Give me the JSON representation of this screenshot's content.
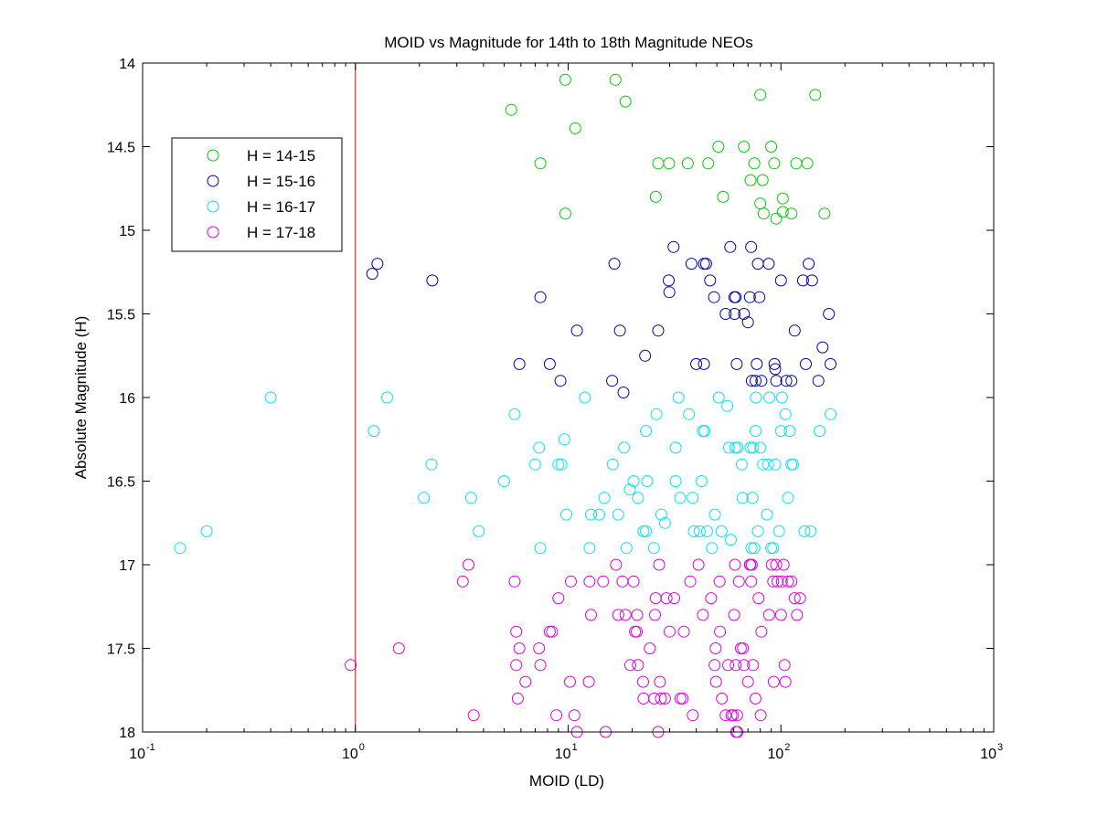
{
  "chart_data": {
    "type": "scatter",
    "title": "MOID vs Magnitude for 14th to 18th Magnitude NEOs",
    "xlabel": "MOID (LD)",
    "ylabel": "Absolute Magnitude (H)",
    "xscale": "log",
    "xlim": [
      0.1,
      1000
    ],
    "ylim": [
      14,
      18
    ],
    "y_reversed": true,
    "grid": false,
    "legend_position": "top-left",
    "x_ticks": [
      {
        "base": "10",
        "exp": "-1",
        "value": 0.1
      },
      {
        "base": "10",
        "exp": "0",
        "value": 1
      },
      {
        "base": "10",
        "exp": "1",
        "value": 10
      },
      {
        "base": "10",
        "exp": "2",
        "value": 100
      },
      {
        "base": "10",
        "exp": "3",
        "value": 1000
      }
    ],
    "y_ticks": [
      "14",
      "14.5",
      "15",
      "15.5",
      "16",
      "16.5",
      "17",
      "17.5",
      "18"
    ],
    "reference_line": {
      "x": 1,
      "color": "#ff0000"
    },
    "series": [
      {
        "name": "H = 14-15",
        "color": "#00cc00",
        "points": [
          [
            9.7,
            14.1
          ],
          [
            16.7,
            14.1
          ],
          [
            5.4,
            14.28
          ],
          [
            10.8,
            14.39
          ],
          [
            18.6,
            14.23
          ],
          [
            80,
            14.19
          ],
          [
            145,
            14.19
          ],
          [
            7.4,
            14.6
          ],
          [
            9.7,
            14.9
          ],
          [
            26.5,
            14.6
          ],
          [
            29.8,
            14.6
          ],
          [
            36.5,
            14.6
          ],
          [
            45.5,
            14.6
          ],
          [
            50.8,
            14.5
          ],
          [
            67,
            14.5
          ],
          [
            75,
            14.6
          ],
          [
            90,
            14.5
          ],
          [
            93,
            14.6
          ],
          [
            118,
            14.6
          ],
          [
            133,
            14.6
          ],
          [
            25.8,
            14.8
          ],
          [
            53.5,
            14.8
          ],
          [
            72,
            14.7
          ],
          [
            82,
            14.7
          ],
          [
            80,
            14.84
          ],
          [
            83,
            14.9
          ],
          [
            95,
            14.93
          ],
          [
            102,
            14.81
          ],
          [
            102,
            14.89
          ],
          [
            112,
            14.9
          ],
          [
            160,
            14.9
          ]
        ]
      },
      {
        "name": "H = 15-16",
        "color": "#0000aa",
        "points": [
          [
            1.2,
            15.26
          ],
          [
            1.27,
            15.2
          ],
          [
            2.3,
            15.3
          ],
          [
            7.4,
            15.4
          ],
          [
            5.9,
            15.8
          ],
          [
            8.2,
            15.8
          ],
          [
            9.2,
            15.9
          ],
          [
            11,
            15.6
          ],
          [
            16.1,
            15.9
          ],
          [
            16.5,
            15.2
          ],
          [
            17.5,
            15.6
          ],
          [
            18.2,
            15.97
          ],
          [
            23,
            15.75
          ],
          [
            26.5,
            15.6
          ],
          [
            29.7,
            15.3
          ],
          [
            29.9,
            15.37
          ],
          [
            31.3,
            15.1
          ],
          [
            38,
            15.2
          ],
          [
            43.5,
            15.2
          ],
          [
            44.5,
            15.2
          ],
          [
            46.5,
            15.3
          ],
          [
            40,
            15.8
          ],
          [
            43.5,
            15.8
          ],
          [
            48.5,
            15.4
          ],
          [
            55,
            15.5
          ],
          [
            57.8,
            15.1
          ],
          [
            60.4,
            15.4
          ],
          [
            61.3,
            15.4
          ],
          [
            60.6,
            15.5
          ],
          [
            62,
            15.8
          ],
          [
            67,
            15.5
          ],
          [
            70,
            15.55
          ],
          [
            71.5,
            15.4
          ],
          [
            72.5,
            15.1
          ],
          [
            73,
            15.9
          ],
          [
            77,
            15.8
          ],
          [
            76,
            15.9
          ],
          [
            78,
            15.2
          ],
          [
            79.2,
            15.4
          ],
          [
            81,
            15.9
          ],
          [
            87.6,
            15.2
          ],
          [
            93.3,
            15.8
          ],
          [
            94,
            15.83
          ],
          [
            95,
            15.9
          ],
          [
            100,
            15.3
          ],
          [
            106,
            15.9
          ],
          [
            112,
            15.9
          ],
          [
            116,
            15.6
          ],
          [
            127,
            15.3
          ],
          [
            135,
            15.2
          ],
          [
            131,
            15.8
          ],
          [
            140,
            15.3
          ],
          [
            150,
            15.9
          ],
          [
            157,
            15.7
          ],
          [
            168,
            15.5
          ],
          [
            171,
            15.8
          ]
        ]
      },
      {
        "name": "H = 16-17",
        "color": "#00e5ee",
        "points": [
          [
            0.15,
            16.9
          ],
          [
            0.2,
            16.8
          ],
          [
            0.4,
            16.0
          ],
          [
            1.22,
            16.2
          ],
          [
            1.41,
            16.0
          ],
          [
            2.1,
            16.6
          ],
          [
            2.28,
            16.4
          ],
          [
            3.5,
            16.6
          ],
          [
            3.8,
            16.8
          ],
          [
            5.0,
            16.5
          ],
          [
            5.6,
            16.1
          ],
          [
            7.0,
            16.4
          ],
          [
            7.3,
            16.3
          ],
          [
            7.4,
            16.9
          ],
          [
            9.0,
            16.4
          ],
          [
            9.3,
            16.4
          ],
          [
            9.6,
            16.25
          ],
          [
            9.8,
            16.7
          ],
          [
            12,
            16.0
          ],
          [
            12.8,
            16.7
          ],
          [
            12.6,
            16.9
          ],
          [
            14,
            16.7
          ],
          [
            14.8,
            16.6
          ],
          [
            16.2,
            16.4
          ],
          [
            17.2,
            16.7
          ],
          [
            18.3,
            16.3
          ],
          [
            18.8,
            16.9
          ],
          [
            19.5,
            16.55
          ],
          [
            20.3,
            16.5
          ],
          [
            21.3,
            16.6
          ],
          [
            22.6,
            16.8
          ],
          [
            23.2,
            16.8
          ],
          [
            23.5,
            16.5
          ],
          [
            23.2,
            16.2
          ],
          [
            25.3,
            16.9
          ],
          [
            26,
            16.1
          ],
          [
            27.4,
            16.7
          ],
          [
            28.5,
            16.75
          ],
          [
            32,
            16.3
          ],
          [
            32,
            16.5
          ],
          [
            33,
            16.0
          ],
          [
            33.6,
            16.6
          ],
          [
            38.5,
            16.6
          ],
          [
            37,
            16.1
          ],
          [
            39,
            16.8
          ],
          [
            41.5,
            16.8
          ],
          [
            43,
            16.2
          ],
          [
            43.8,
            16.2
          ],
          [
            42.4,
            16.5
          ],
          [
            45,
            16.8
          ],
          [
            47.4,
            16.9
          ],
          [
            49,
            16.7
          ],
          [
            51,
            16.0
          ],
          [
            52.6,
            16.8
          ],
          [
            56,
            16.05
          ],
          [
            57,
            16.3
          ],
          [
            58.2,
            16.85
          ],
          [
            61,
            16.3
          ],
          [
            62.6,
            16.3
          ],
          [
            65.5,
            16.4
          ],
          [
            66,
            16.6
          ],
          [
            72,
            16.3
          ],
          [
            72.7,
            16.9
          ],
          [
            73.5,
            16.6
          ],
          [
            74,
            16.3
          ],
          [
            75,
            16.9
          ],
          [
            76,
            16.2
          ],
          [
            76.3,
            16.0
          ],
          [
            78,
            16.8
          ],
          [
            80,
            16.3
          ],
          [
            82.5,
            16.4
          ],
          [
            86,
            16.7
          ],
          [
            87,
            16.4
          ],
          [
            88.2,
            16.0
          ],
          [
            90,
            16.9
          ],
          [
            92,
            16.9
          ],
          [
            94,
            16.4
          ],
          [
            98,
            16.8
          ],
          [
            100,
            16.2
          ],
          [
            101,
            16.0
          ],
          [
            105,
            16.1
          ],
          [
            110,
            16.2
          ],
          [
            108,
            16.6
          ],
          [
            112,
            16.4
          ],
          [
            114,
            16.4
          ],
          [
            129,
            16.8
          ],
          [
            138,
            16.8
          ],
          [
            152,
            16.2
          ],
          [
            171,
            16.1
          ]
        ]
      },
      {
        "name": "H = 17-18",
        "color": "#dd00dd",
        "points": [
          [
            0.95,
            17.6
          ],
          [
            1.6,
            17.5
          ],
          [
            3.2,
            17.1
          ],
          [
            3.4,
            17.0
          ],
          [
            3.6,
            17.9
          ],
          [
            5.6,
            17.1
          ],
          [
            5.7,
            17.4
          ],
          [
            5.7,
            17.6
          ],
          [
            5.8,
            17.8
          ],
          [
            5.9,
            17.5
          ],
          [
            6.3,
            17.7
          ],
          [
            7.3,
            17.5
          ],
          [
            7.4,
            17.6
          ],
          [
            8.2,
            17.4
          ],
          [
            8.4,
            17.4
          ],
          [
            8.8,
            17.9
          ],
          [
            9.0,
            17.2
          ],
          [
            10.3,
            17.1
          ],
          [
            10.2,
            17.7
          ],
          [
            10.7,
            17.9
          ],
          [
            11,
            18.0
          ],
          [
            12.6,
            17.1
          ],
          [
            12.5,
            17.7
          ],
          [
            12.8,
            17.3
          ],
          [
            14.6,
            17.1
          ],
          [
            15,
            18.0
          ],
          [
            16.8,
            17.0
          ],
          [
            17.2,
            17.3
          ],
          [
            18,
            17.1
          ],
          [
            18.6,
            17.3
          ],
          [
            19.6,
            17.6
          ],
          [
            20.3,
            17.1
          ],
          [
            20.6,
            17.4
          ],
          [
            21,
            17.4
          ],
          [
            21.1,
            17.3
          ],
          [
            21.3,
            17.6
          ],
          [
            22.5,
            17.7
          ],
          [
            22.6,
            17.8
          ],
          [
            24.2,
            17.5
          ],
          [
            25.6,
            17.3
          ],
          [
            25.4,
            17.8
          ],
          [
            25.8,
            17.2
          ],
          [
            26.8,
            17.0
          ],
          [
            26.5,
            18.0
          ],
          [
            27,
            17.7
          ],
          [
            27.3,
            17.8
          ],
          [
            28.5,
            17.8
          ],
          [
            29,
            17.2
          ],
          [
            30,
            17.4
          ],
          [
            31.5,
            17.2
          ],
          [
            33.7,
            17.8
          ],
          [
            34.5,
            17.8
          ],
          [
            35,
            17.4
          ],
          [
            37.5,
            17.1
          ],
          [
            38.5,
            17.9
          ],
          [
            41,
            17.0
          ],
          [
            43,
            17.3
          ],
          [
            47,
            17.2
          ],
          [
            48.8,
            17.6
          ],
          [
            49.3,
            17.5
          ],
          [
            49.5,
            17.7
          ],
          [
            51.5,
            17.1
          ],
          [
            51.7,
            17.4
          ],
          [
            52.8,
            17.8
          ],
          [
            55,
            17.9
          ],
          [
            56.5,
            17.6
          ],
          [
            58.5,
            17.9
          ],
          [
            59.6,
            17.9
          ],
          [
            60.3,
            17.3
          ],
          [
            60.8,
            17.0
          ],
          [
            61.3,
            17.6
          ],
          [
            61.6,
            18.0
          ],
          [
            62.5,
            18.0
          ],
          [
            62.2,
            17.9
          ],
          [
            63.5,
            17.1
          ],
          [
            64.8,
            17.5
          ],
          [
            66.3,
            17.5
          ],
          [
            67,
            17.6
          ],
          [
            70,
            17.7
          ],
          [
            71.5,
            17.0
          ],
          [
            71.8,
            17.0
          ],
          [
            72.5,
            17.1
          ],
          [
            73,
            17.0
          ],
          [
            74,
            17.6
          ],
          [
            76,
            17.8
          ],
          [
            78.5,
            17.2
          ],
          [
            80.3,
            17.9
          ],
          [
            81,
            17.4
          ],
          [
            88,
            17.3
          ],
          [
            90.6,
            17.0
          ],
          [
            92,
            17.1
          ],
          [
            92.5,
            17.7
          ],
          [
            95,
            17.0
          ],
          [
            96.4,
            17.1
          ],
          [
            100,
            17.3
          ],
          [
            101,
            17.1
          ],
          [
            103,
            17.0
          ],
          [
            104,
            17.6
          ],
          [
            105,
            17.7
          ],
          [
            108,
            17.1
          ],
          [
            112,
            17.1
          ],
          [
            116,
            17.2
          ],
          [
            119,
            17.3
          ],
          [
            123,
            17.2
          ]
        ]
      }
    ]
  }
}
